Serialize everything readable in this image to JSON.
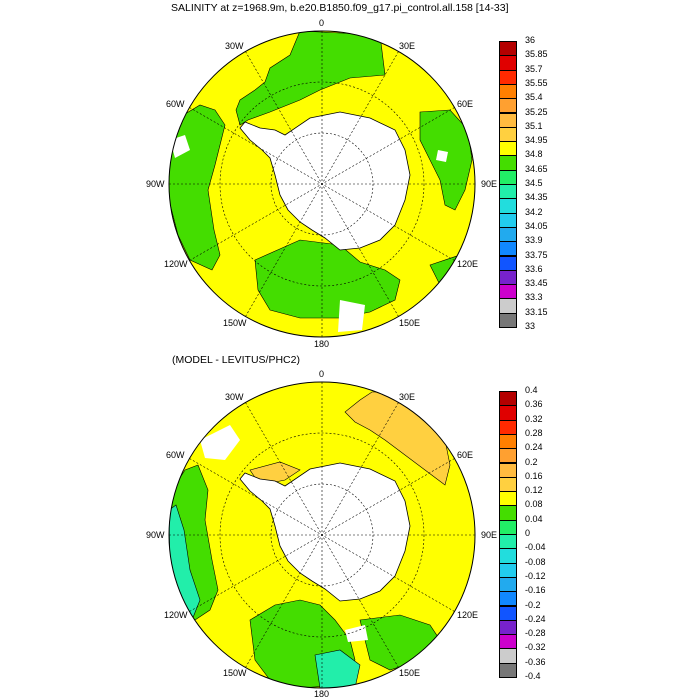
{
  "top_panel": {
    "title": "SALINITY at z=1968.9m, b.e20.B1850.f09_g17.pi_control.all.158 [14-33]",
    "lon_labels": {
      "n": "0",
      "n30e": "30E",
      "n60e": "60E",
      "e90": "90E",
      "e120": "120E",
      "e150": "150E",
      "s180": "180",
      "w150": "150W",
      "w120": "120W",
      "w90": "90W",
      "w60": "60W",
      "w30": "30W"
    },
    "colorbar": {
      "labels": [
        "36",
        "35.85",
        "35.7",
        "35.55",
        "35.4",
        "35.25",
        "35.1",
        "34.95",
        "34.8",
        "34.65",
        "34.5",
        "34.35",
        "34.2",
        "34.05",
        "33.9",
        "33.75",
        "33.6",
        "33.45",
        "33.3",
        "33.15",
        "33"
      ],
      "colors": [
        "#b40000",
        "#e00000",
        "#ff2a00",
        "#ff7f00",
        "#ffa030",
        "#ffbb40",
        "#ffd040",
        "#ffff00",
        "#44dd00",
        "#22ee66",
        "#22eeaa",
        "#22dddd",
        "#22ccee",
        "#22aaee",
        "#1188ff",
        "#1155ff",
        "#7722cc",
        "#cc00cc",
        "#cccccc",
        "#777777"
      ]
    }
  },
  "bottom_panel": {
    "title": "(MODEL - LEVITUS/PHC2)",
    "lon_labels": {
      "n": "0",
      "n30e": "30E",
      "n60e": "60E",
      "e90": "90E",
      "e120": "120E",
      "e150": "150E",
      "s180": "180",
      "w150": "150W",
      "w120": "120W",
      "w90": "90W",
      "w60": "60W",
      "w30": "30W"
    },
    "colorbar": {
      "labels": [
        "0.4",
        "0.36",
        "0.32",
        "0.28",
        "0.24",
        "0.2",
        "0.16",
        "0.12",
        "0.08",
        "0.04",
        "0",
        "-0.04",
        "-0.08",
        "-0.12",
        "-0.16",
        "-0.2",
        "-0.24",
        "-0.28",
        "-0.32",
        "-0.36",
        "-0.4"
      ],
      "colors": [
        "#b40000",
        "#e00000",
        "#ff2a00",
        "#ff7f00",
        "#ffa030",
        "#ffbb40",
        "#ffd040",
        "#ffff00",
        "#44dd00",
        "#22ee66",
        "#22eeaa",
        "#22dddd",
        "#22ccee",
        "#22aaee",
        "#1188ff",
        "#1155ff",
        "#7722cc",
        "#cc00cc",
        "#cccccc",
        "#777777"
      ]
    }
  },
  "colors": {
    "yellow": "#ffff00",
    "green": "#44dd00",
    "light_orange": "#ffd040",
    "aqua": "#22eeaa",
    "land": "#ffffff"
  }
}
